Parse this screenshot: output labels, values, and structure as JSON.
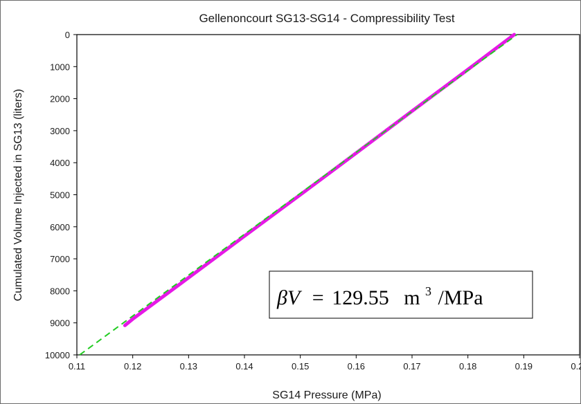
{
  "chart_data": {
    "type": "line",
    "title": "Gellenoncourt SG13-SG14 - Compressibility Test",
    "xlabel": "SG14 Pressure (MPa)",
    "ylabel": "Cumulated Volume Injected in SG13  (liters)",
    "xlim": [
      0.11,
      0.2
    ],
    "ylim": [
      0,
      10000
    ],
    "y_inverted": true,
    "grid": false,
    "x_ticks": [
      "0.11",
      "0.12",
      "0.13",
      "0.14",
      "0.15",
      "0.16",
      "0.17",
      "0.18",
      "0.19",
      "0.20"
    ],
    "y_ticks": [
      "0",
      "1000",
      "2000",
      "3000",
      "4000",
      "5000",
      "6000",
      "7000",
      "8000",
      "9000",
      "10000"
    ],
    "series": [
      {
        "style": "measured",
        "color": "#e619e6",
        "x": [
          0.1883,
          0.18,
          0.17,
          0.16,
          0.15,
          0.14,
          0.13,
          0.12,
          0.1186
        ],
        "y": [
          0,
          1090,
          2390,
          3700,
          5000,
          6290,
          7590,
          8880,
          9080
        ]
      },
      {
        "style": "fit",
        "color": "#22cc22",
        "dash": true,
        "x": [
          0.1105,
          0.1888
        ],
        "y": [
          10000,
          0
        ]
      }
    ],
    "annotations": [
      {
        "beta_v": "βV",
        "equals": "=",
        "value": "129.55",
        "unit_base": "m",
        "unit_exp": "3",
        "unit_tail": "/MPa"
      }
    ]
  }
}
